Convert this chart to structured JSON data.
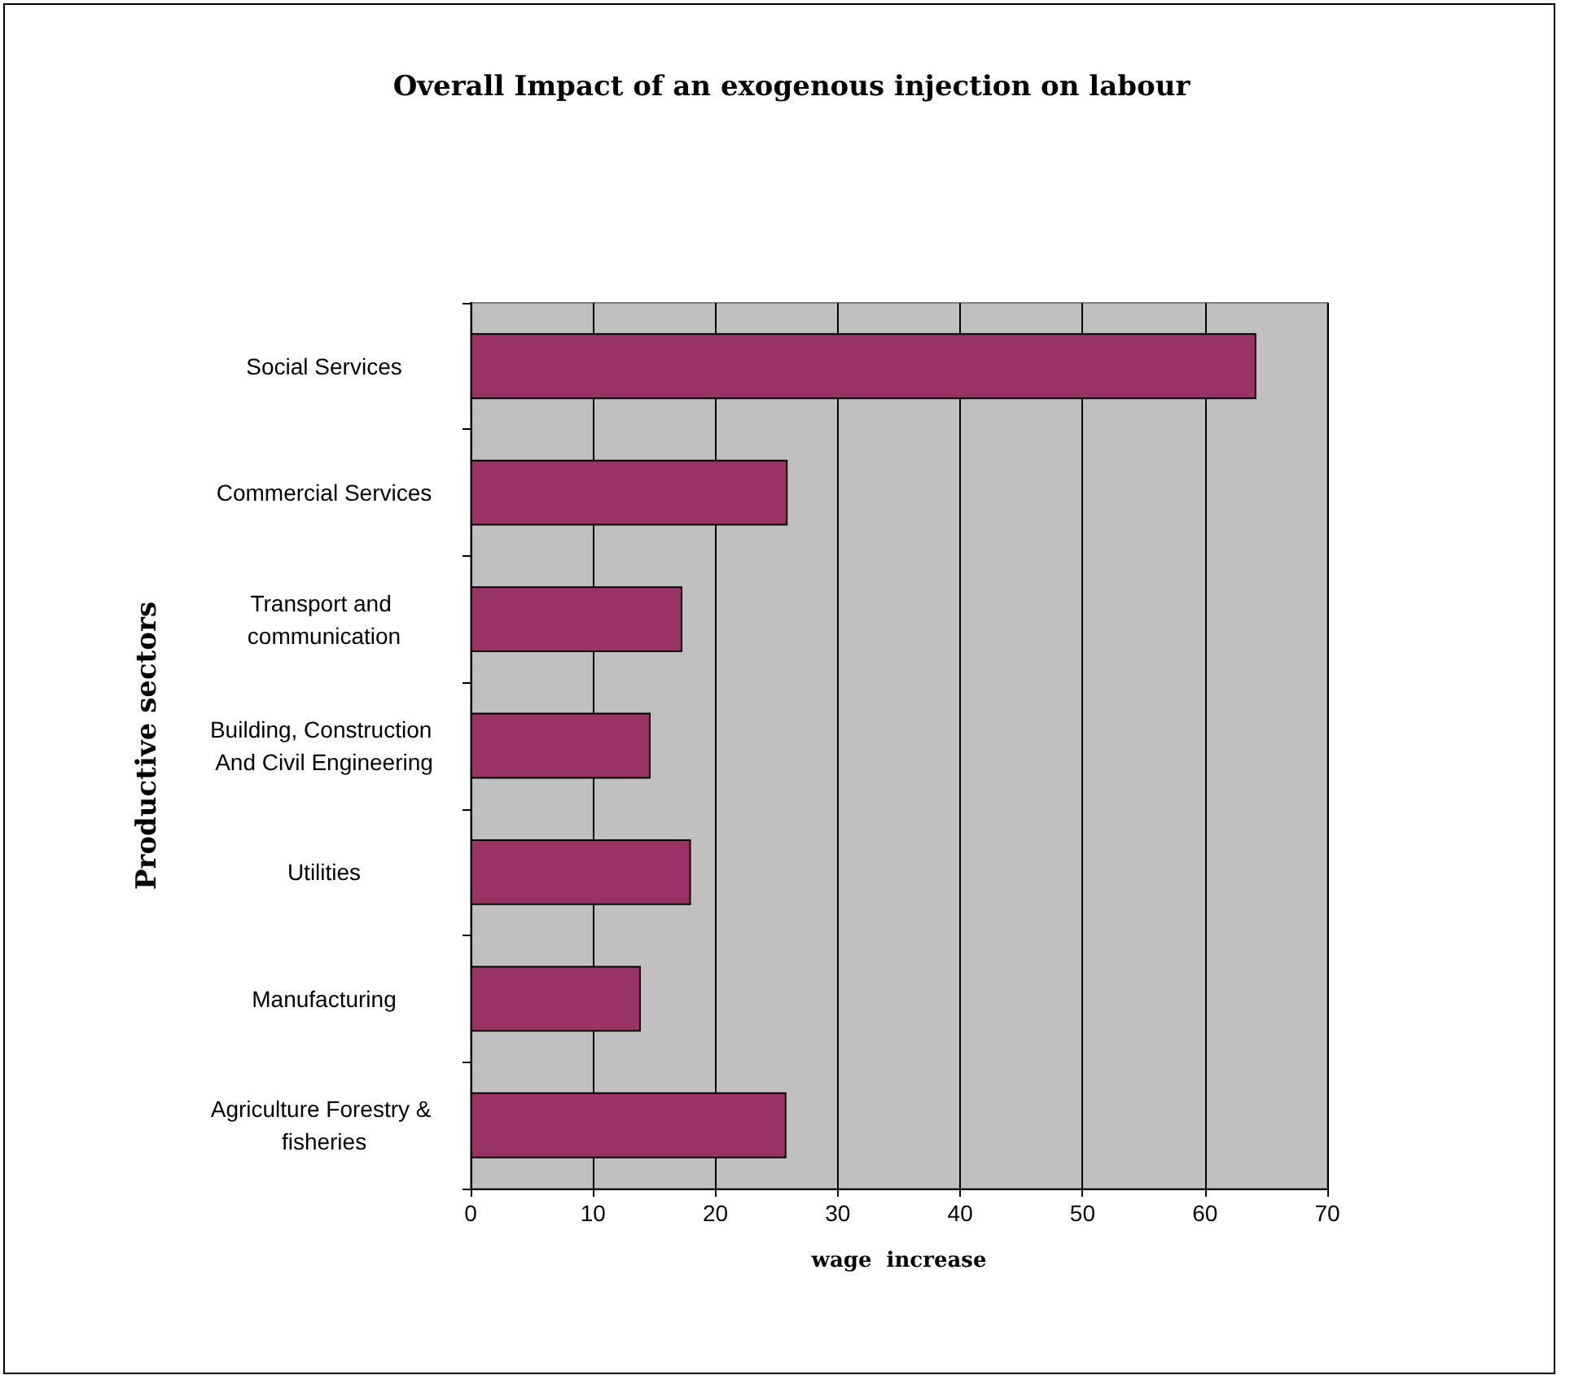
{
  "chart_data": {
    "type": "bar",
    "orientation": "horizontal",
    "title": "Overall Impact of an exogenous injection on labour",
    "xlabel": "wage  increase",
    "ylabel": "Productive sectors",
    "categories": [
      "Social Services",
      "Commercial Services",
      "Transport and communication",
      "Building, Construction And Civil Engineering",
      "Utilities",
      "Manufacturing",
      "Agriculture Forestry & fisheries"
    ],
    "values": [
      64.2,
      25.9,
      17.3,
      14.7,
      18.0,
      13.9,
      25.8
    ],
    "color": "#993366",
    "xlim": [
      0,
      70
    ],
    "xticks": [
      0,
      10,
      20,
      30,
      40,
      50,
      60,
      70
    ],
    "grid": "x"
  }
}
